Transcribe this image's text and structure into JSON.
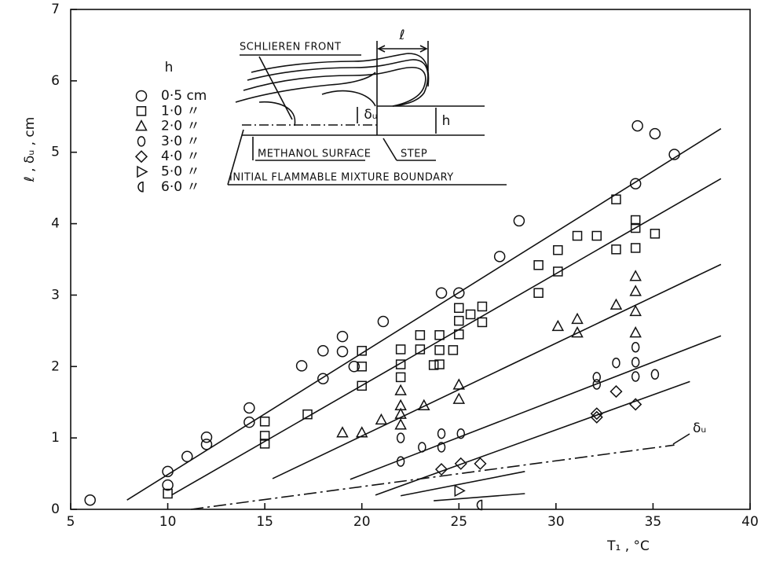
{
  "chart_data": {
    "type": "scatter",
    "xlabel": "T₁ ,  °C",
    "ylabel": "ℓ ,  δᵤ ,  cm",
    "xlim": [
      5,
      40
    ],
    "ylim": [
      0,
      7
    ],
    "xticks": [
      5,
      10,
      15,
      20,
      25,
      30,
      35,
      40
    ],
    "yticks": [
      0,
      1,
      2,
      3,
      4,
      5,
      6,
      7
    ],
    "grid": false,
    "legend_title": "h",
    "series": [
      {
        "name": "0·5  cm",
        "marker": "circle",
        "color": "#111",
        "x": [
          6,
          10,
          10,
          11,
          12,
          12,
          14.2,
          14.2,
          16.9,
          18,
          18,
          19,
          19,
          19.6,
          21.1,
          24.1,
          25,
          27.1,
          28.1,
          34.1,
          34.2,
          35.1,
          36.1
        ],
        "values": [
          0.13,
          0.34,
          0.53,
          0.74,
          0.91,
          1.01,
          1.22,
          1.42,
          2.01,
          1.83,
          2.22,
          2.21,
          2.42,
          2.0,
          2.63,
          3.03,
          3.03,
          3.54,
          4.04,
          4.56,
          5.37,
          5.26,
          4.97
        ]
      },
      {
        "name": "1·0  〃",
        "marker": "square",
        "color": "#111",
        "x": [
          10,
          15,
          15,
          15,
          17.2,
          20,
          20,
          20,
          22,
          22,
          22,
          23,
          23,
          23.7,
          24,
          24,
          24,
          24.7,
          25,
          25,
          25,
          25.6,
          26.2,
          26.2,
          29.1,
          29.1,
          30.1,
          30.1,
          31.1,
          32.1,
          33.1,
          33.1,
          34.1,
          34.1,
          34.1,
          35.1
        ],
        "values": [
          0.22,
          1.23,
          1.03,
          0.92,
          1.33,
          2.22,
          2.0,
          1.73,
          2.24,
          2.03,
          1.85,
          2.44,
          2.24,
          2.02,
          2.44,
          2.23,
          2.03,
          2.23,
          2.82,
          2.64,
          2.45,
          2.73,
          2.84,
          2.62,
          3.03,
          3.42,
          3.63,
          3.33,
          3.83,
          3.83,
          4.34,
          3.64,
          4.05,
          3.94,
          3.66,
          3.86
        ]
      },
      {
        "name": "2·0  〃",
        "marker": "triangle",
        "color": "#111",
        "x": [
          19,
          20,
          21,
          22,
          22,
          22,
          22,
          23.2,
          25,
          25,
          30.1,
          31.1,
          31.1,
          33.1,
          34.1,
          34.1,
          34.1,
          34.1
        ],
        "values": [
          1.07,
          1.07,
          1.25,
          1.66,
          1.45,
          1.33,
          1.18,
          1.45,
          1.74,
          1.54,
          2.56,
          2.66,
          2.47,
          2.86,
          3.26,
          3.05,
          2.77,
          2.47
        ]
      },
      {
        "name": "3·0  〃",
        "marker": "ellipse",
        "color": "#111",
        "x": [
          22,
          22,
          23.1,
          24.1,
          24.1,
          25.1,
          32.1,
          32.1,
          33.1,
          34.1,
          34.1,
          34.1,
          35.1
        ],
        "values": [
          1.0,
          0.67,
          0.87,
          1.06,
          0.87,
          1.06,
          1.85,
          1.75,
          2.05,
          2.27,
          2.06,
          1.86,
          1.89
        ]
      },
      {
        "name": "4·0  〃",
        "marker": "diamond",
        "color": "#111",
        "x": [
          24.1,
          25.1,
          26.1,
          32.1,
          32.1,
          33.1,
          34.1
        ],
        "values": [
          0.56,
          0.64,
          0.64,
          1.34,
          1.29,
          1.65,
          1.47
        ]
      },
      {
        "name": "5·0  〃",
        "marker": "triangle-right",
        "color": "#111",
        "x": [
          25
        ],
        "values": [
          0.26
        ]
      },
      {
        "name": "6·0  〃",
        "marker": "half-circle",
        "color": "#111",
        "x": [
          26.1
        ],
        "values": [
          0.06
        ]
      }
    ],
    "lines": [
      {
        "style": "solid",
        "x": [
          7.9,
          38.5
        ],
        "y": [
          0.13,
          5.33
        ]
      },
      {
        "style": "solid",
        "x": [
          10.2,
          38.5
        ],
        "y": [
          0.2,
          4.63
        ]
      },
      {
        "style": "solid",
        "x": [
          15.4,
          38.5
        ],
        "y": [
          0.43,
          3.43
        ]
      },
      {
        "style": "solid",
        "x": [
          19.4,
          38.5
        ],
        "y": [
          0.42,
          2.43
        ]
      },
      {
        "style": "solid",
        "x": [
          20.7,
          36.9
        ],
        "y": [
          0.2,
          1.79
        ]
      },
      {
        "style": "solid",
        "x": [
          22.0,
          28.4
        ],
        "y": [
          0.19,
          0.53
        ]
      },
      {
        "style": "solid",
        "x": [
          23.7,
          28.4
        ],
        "y": [
          0.12,
          0.22
        ]
      },
      {
        "style": "dashdot",
        "x": [
          11.2,
          36.1
        ],
        "y": [
          0.0,
          0.9
        ]
      }
    ],
    "annotations": {
      "delta_line": "δᵤ",
      "schlieren": "SCHLIEREN FRONT",
      "ell": "ℓ",
      "delta": "δᵤ",
      "h": "h",
      "methanol": "METHANOL SURFACE",
      "step": "STEP",
      "boundary": "INITIAL FLAMMABLE MIXTURE BOUNDARY"
    }
  }
}
